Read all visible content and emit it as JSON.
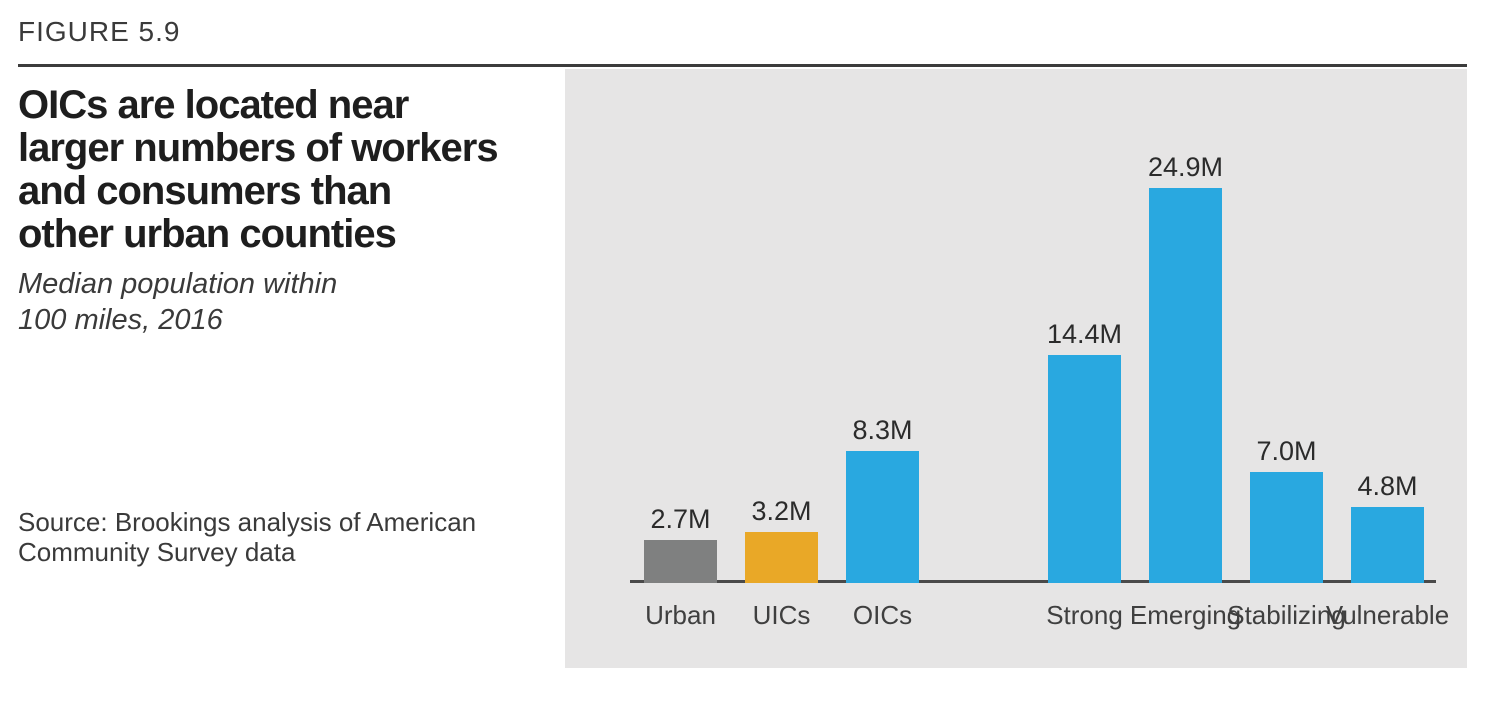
{
  "figure": {
    "label": "FIGURE 5.9",
    "title": "OICs are located near\nlarger numbers of workers\nand consumers than\nother urban counties",
    "subtitle": "Median population within\n100 miles, 2016",
    "source": "Source: Brookings analysis of American\nCommunity Survey data"
  },
  "chart_data": {
    "type": "bar",
    "title": "OICs are located near larger numbers of workers and consumers than other urban counties",
    "subtitle": "Median population within 100 miles, 2016",
    "unit": "millions of people",
    "categories": [
      "Urban",
      "UICs",
      "OICs",
      "Strong",
      "Emerging",
      "Stabilizing",
      "Vulnerable"
    ],
    "values": [
      2.7,
      3.2,
      8.3,
      14.4,
      24.9,
      7.0,
      4.8
    ],
    "value_labels": [
      "2.7M",
      "3.2M",
      "8.3M",
      "14.4M",
      "24.9M",
      "7.0M",
      "4.8M"
    ],
    "bar_colors": [
      "#7f8080",
      "#e9a827",
      "#29a8e0",
      "#29a8e0",
      "#29a8e0",
      "#29a8e0",
      "#29a8e0"
    ],
    "groups": [
      {
        "members": [
          "Urban",
          "UICs",
          "OICs"
        ]
      },
      {
        "members": [
          "Strong",
          "Emerging",
          "Stabilizing",
          "Vulnerable"
        ]
      }
    ],
    "ylim": [
      0,
      26
    ],
    "grid": false,
    "legend": false,
    "plot_background": "#e6e5e5",
    "axis_color": "#4a4a4a"
  },
  "colors": {
    "accent_blue": "#29a8e0",
    "accent_orange": "#e9a827",
    "accent_gray": "#7f8080",
    "text_dark": "#1e1e1e",
    "text_medium": "#3a3a3a"
  }
}
